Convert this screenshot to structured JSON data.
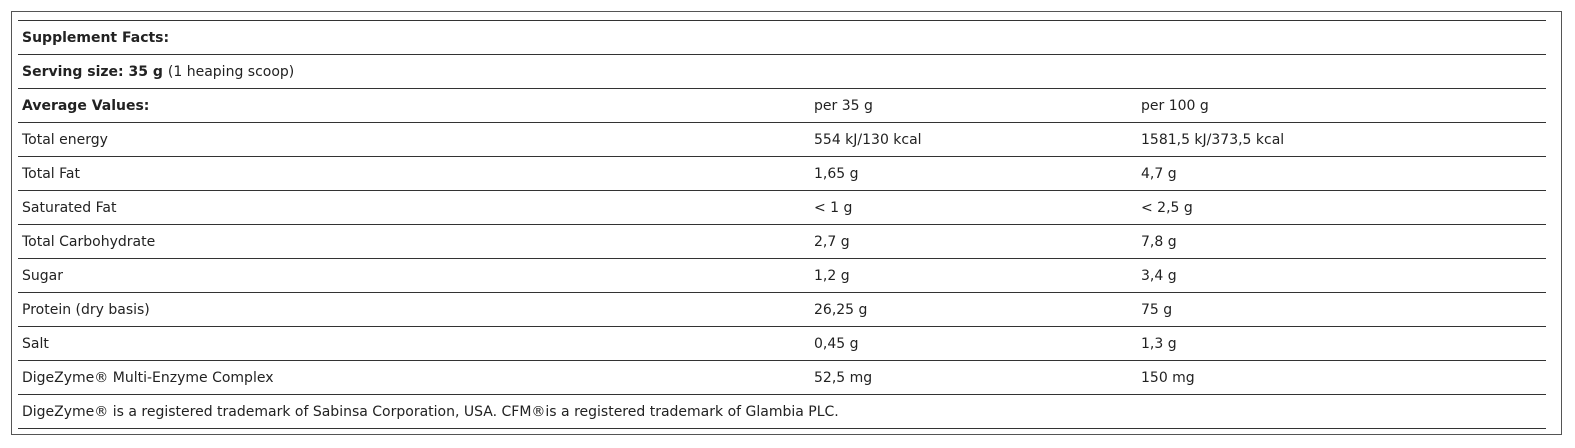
{
  "title": "Supplement Facts:",
  "serving_size": {
    "label": "Serving size: 35 g",
    "note": "(1 heaping scoop)"
  },
  "header": [
    "Average Values:",
    "per 35 g",
    "per 100 g"
  ],
  "rows": [
    [
      "Total energy",
      "554 kJ/130 kcal",
      "1581,5 kJ/373,5 kcal"
    ],
    [
      "Total Fat",
      "1,65 g",
      "4,7 g"
    ],
    [
      "Saturated Fat",
      "< 1 g",
      "< 2,5 g"
    ],
    [
      "Total Carbohydrate",
      "2,7 g",
      "7,8 g"
    ],
    [
      "Sugar",
      "1,2 g",
      "3,4 g"
    ],
    [
      "Protein (dry basis)",
      "26,25 g",
      "75 g"
    ],
    [
      "Salt",
      "0,45 g",
      "1,3 g"
    ],
    [
      "DigeZyme® Multi-Enzyme Complex",
      "52,5 mg",
      "150 mg"
    ]
  ],
  "footnote": "DigeZyme® is a registered trademark of Sabinsa Corporation, USA. CFM®is a registered trademark of Glambia PLC."
}
